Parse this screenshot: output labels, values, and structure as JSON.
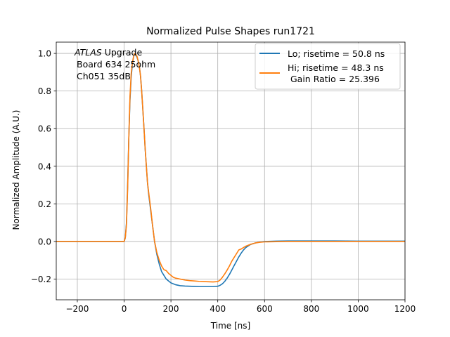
{
  "chart_data": {
    "type": "line",
    "title": "Normalized Pulse Shapes run1721",
    "xlabel": "Time [ns]",
    "ylabel": "Normalized Amplitude (A.U.)",
    "xlim": [
      -290,
      1200
    ],
    "ylim": [
      -0.31,
      1.06
    ],
    "xticks": [
      -200,
      0,
      200,
      400,
      600,
      800,
      1000,
      1200
    ],
    "xtick_labels": [
      "−200",
      "0",
      "200",
      "400",
      "600",
      "800",
      "1000",
      "1200"
    ],
    "yticks": [
      -0.2,
      0.0,
      0.2,
      0.4,
      0.6,
      0.8,
      1.0
    ],
    "ytick_labels": [
      "−0.2",
      "0.0",
      "0.2",
      "0.4",
      "0.6",
      "0.8",
      "1.0"
    ],
    "grid": true,
    "legend_position": "top-right",
    "annotation": {
      "line1_italic": "ATLAS",
      "line1_rest": " Upgrade",
      "line2": "Board 634 25ohm",
      "line3": "Ch051 35dB"
    },
    "series": [
      {
        "name": "Lo; risetime = 50.8 ns",
        "color": "#1f77b4",
        "x": [
          -290,
          -100,
          0,
          5,
          10,
          15,
          20,
          25,
          30,
          35,
          40,
          45,
          50,
          55,
          60,
          65,
          70,
          75,
          80,
          85,
          90,
          95,
          100,
          105,
          110,
          115,
          120,
          125,
          130,
          140,
          150,
          160,
          170,
          180,
          190,
          200,
          210,
          220,
          240,
          260,
          280,
          300,
          320,
          340,
          360,
          380,
          400,
          410,
          420,
          430,
          440,
          450,
          460,
          470,
          480,
          490,
          500,
          510,
          520,
          540,
          560,
          580,
          600,
          650,
          700,
          800,
          900,
          1000,
          1100,
          1200
        ],
        "y": [
          0.0,
          0.0,
          0.0,
          0.02,
          0.1,
          0.3,
          0.55,
          0.75,
          0.87,
          0.94,
          0.98,
          1.0,
          0.99,
          0.98,
          0.96,
          0.93,
          0.88,
          0.8,
          0.7,
          0.6,
          0.49,
          0.4,
          0.31,
          0.25,
          0.2,
          0.15,
          0.1,
          0.05,
          0.0,
          -0.07,
          -0.12,
          -0.16,
          -0.18,
          -0.2,
          -0.21,
          -0.22,
          -0.225,
          -0.23,
          -0.235,
          -0.237,
          -0.238,
          -0.239,
          -0.24,
          -0.24,
          -0.24,
          -0.24,
          -0.238,
          -0.233,
          -0.225,
          -0.212,
          -0.195,
          -0.175,
          -0.152,
          -0.128,
          -0.105,
          -0.082,
          -0.062,
          -0.045,
          -0.032,
          -0.016,
          -0.008,
          -0.003,
          0.0,
          0.002,
          0.003,
          0.003,
          0.003,
          0.002,
          0.002,
          0.002
        ]
      },
      {
        "name": "Hi; risetime = 48.3 ns\n Gain Ratio = 25.396",
        "color": "#ff7f0e",
        "x": [
          -290,
          -100,
          0,
          5,
          10,
          15,
          20,
          25,
          30,
          35,
          40,
          45,
          50,
          55,
          60,
          65,
          70,
          75,
          80,
          85,
          90,
          95,
          100,
          105,
          110,
          115,
          120,
          125,
          130,
          140,
          150,
          160,
          170,
          180,
          190,
          200,
          210,
          220,
          240,
          260,
          280,
          300,
          320,
          340,
          360,
          380,
          400,
          410,
          420,
          430,
          440,
          450,
          460,
          470,
          480,
          490,
          500,
          510,
          520,
          540,
          560,
          580,
          600,
          650,
          700,
          800,
          900,
          1000,
          1100,
          1200
        ],
        "y": [
          0.0,
          0.0,
          0.0,
          0.02,
          0.09,
          0.28,
          0.55,
          0.77,
          0.89,
          0.95,
          0.98,
          1.0,
          0.995,
          0.985,
          0.96,
          0.93,
          0.88,
          0.8,
          0.7,
          0.6,
          0.49,
          0.4,
          0.31,
          0.26,
          0.21,
          0.16,
          0.1,
          0.05,
          0.0,
          -0.06,
          -0.1,
          -0.13,
          -0.15,
          -0.155,
          -0.17,
          -0.18,
          -0.19,
          -0.195,
          -0.2,
          -0.205,
          -0.208,
          -0.21,
          -0.212,
          -0.213,
          -0.214,
          -0.215,
          -0.213,
          -0.205,
          -0.19,
          -0.172,
          -0.152,
          -0.13,
          -0.105,
          -0.085,
          -0.065,
          -0.045,
          -0.04,
          -0.032,
          -0.025,
          -0.015,
          -0.008,
          -0.004,
          -0.002,
          -0.001,
          0.0,
          0.0,
          0.0,
          0.0,
          0.0,
          0.0
        ]
      }
    ]
  }
}
